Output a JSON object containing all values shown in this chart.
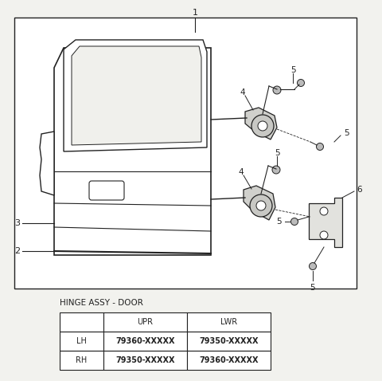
{
  "bg_color": "#f2f2ee",
  "line_color": "#222222",
  "label_caption": "HINGE ASSY - DOOR",
  "table": {
    "headers": [
      "",
      "UPR",
      "LWR"
    ],
    "rows": [
      [
        "LH",
        "79360-XXXXX",
        "79350-XXXXX"
      ],
      [
        "RH",
        "79350-XXXXX",
        "79360-XXXXX"
      ]
    ]
  }
}
